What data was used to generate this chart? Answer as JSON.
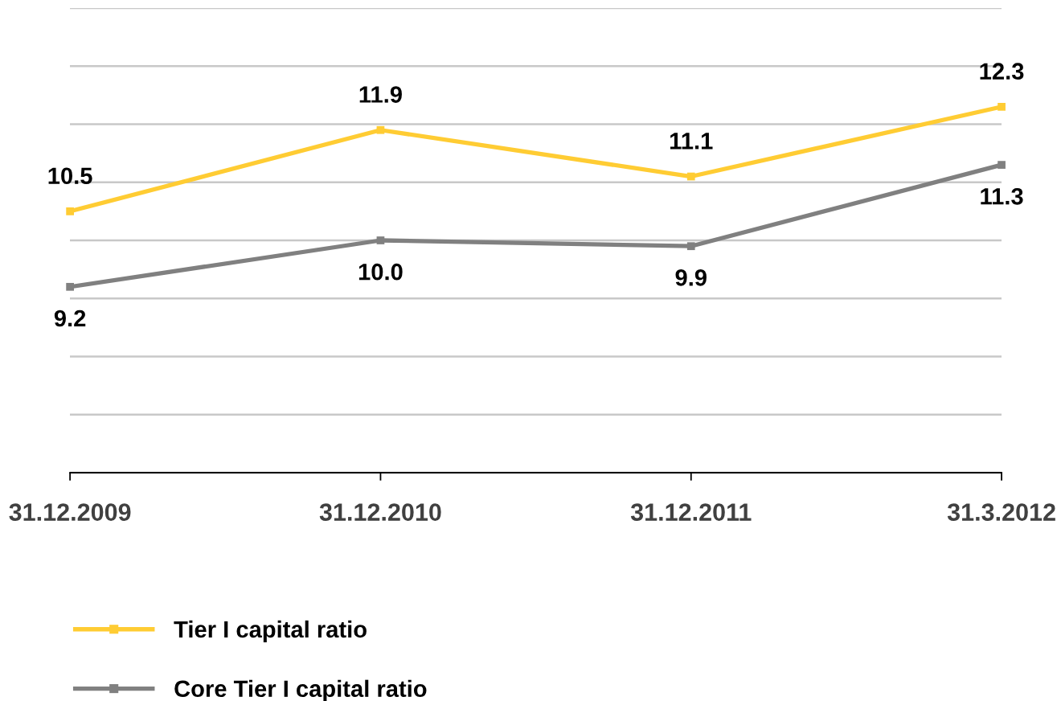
{
  "chart_data": {
    "type": "line",
    "categories": [
      "31.12.2009",
      "31.12.2010",
      "31.12.2011",
      "31.3.2012"
    ],
    "series": [
      {
        "name": "Tier I capital ratio",
        "color": "#ffcc33",
        "values": [
          10.5,
          11.9,
          11.1,
          12.3
        ],
        "value_labels": [
          "10.5",
          "11.9",
          "11.1",
          "12.3"
        ]
      },
      {
        "name": "Core Tier I capital ratio",
        "color": "#808080",
        "values": [
          9.2,
          10.0,
          9.9,
          11.3
        ],
        "value_labels": [
          "9.2",
          "10.0",
          "9.9",
          "11.3"
        ]
      }
    ],
    "ylim": [
      6,
      14
    ],
    "yticks": [
      {
        "value": 6,
        "label": null
      },
      {
        "value": 7,
        "label": null
      },
      {
        "value": 8,
        "label": null
      },
      {
        "value": 9,
        "label": null
      },
      {
        "value": 10,
        "label": null
      },
      {
        "value": 11,
        "label": null
      },
      {
        "value": 12,
        "label": null
      },
      {
        "value": 13,
        "label": null
      },
      {
        "value": 14,
        "label": null
      }
    ],
    "grid": "y",
    "legend": "bottom left",
    "tick_labels": "x",
    "marker": "square",
    "line_style": "solid"
  }
}
